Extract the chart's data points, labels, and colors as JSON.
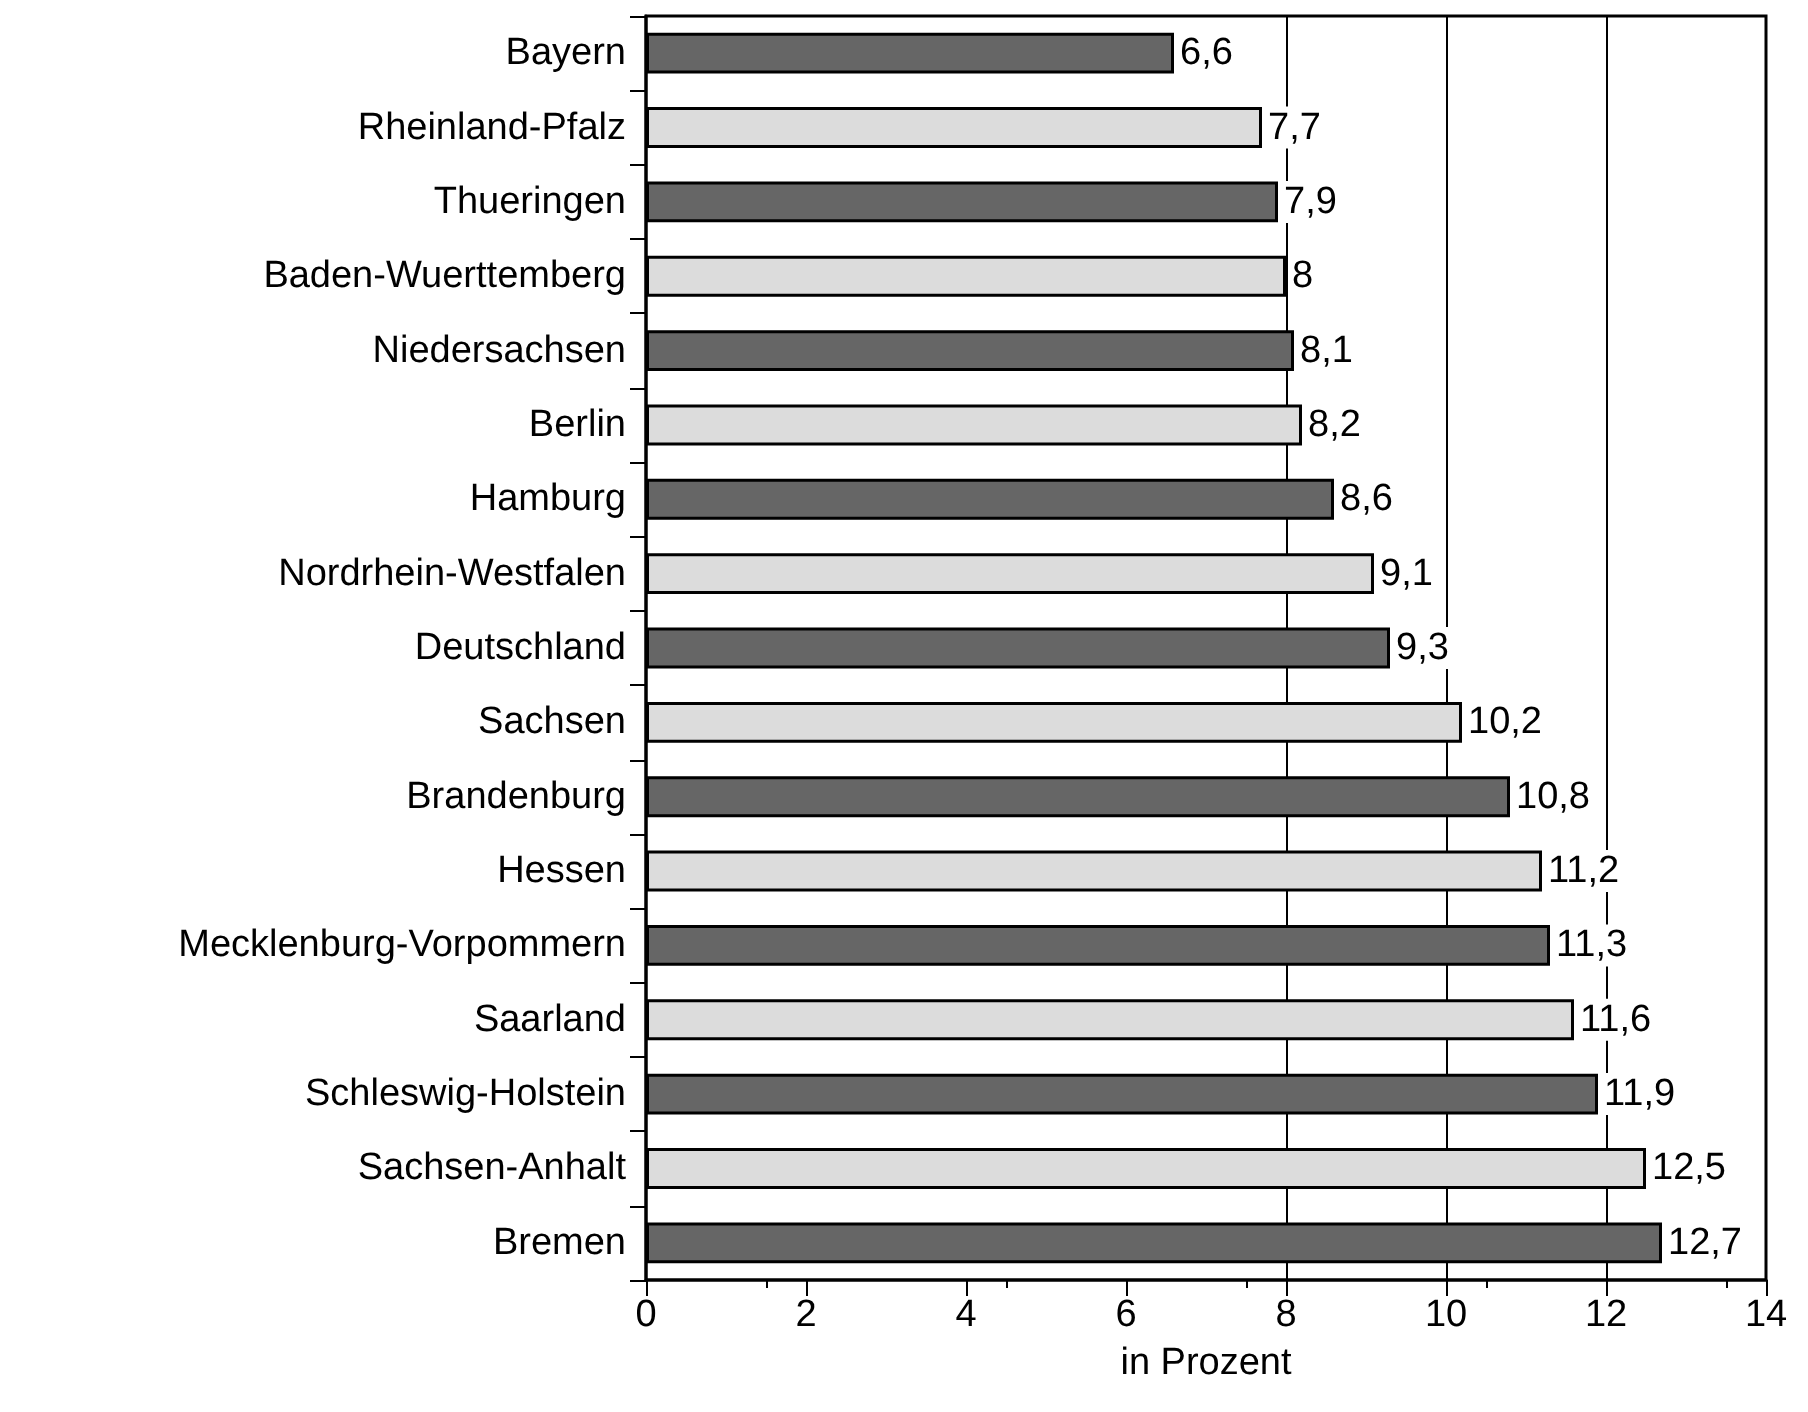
{
  "chart_data": {
    "type": "bar",
    "orientation": "horizontal",
    "xlabel": "in Prozent",
    "categories": [
      "Bayern",
      "Rheinland-Pfalz",
      "Thueringen",
      "Baden-Wuerttemberg",
      "Niedersachsen",
      "Berlin",
      "Hamburg",
      "Nordrhein-Westfalen",
      "Deutschland",
      "Sachsen",
      "Brandenburg",
      "Hessen",
      "Mecklenburg-Vorpommern",
      "Saarland",
      "Schleswig-Holstein",
      "Sachsen-Anhalt",
      "Bremen"
    ],
    "values": [
      6.6,
      7.7,
      7.9,
      8,
      8.1,
      8.2,
      8.6,
      9.1,
      9.3,
      10.2,
      10.8,
      11.2,
      11.3,
      11.6,
      11.9,
      12.5,
      12.7
    ],
    "value_labels": [
      "6,6",
      "7,7",
      "7,9",
      "8",
      "8,1",
      "8,2",
      "8,6",
      "9,1",
      "9,3",
      "10,2",
      "10,8",
      "11,2",
      "11,3",
      "11,6",
      "11,9",
      "12,5",
      "12,7"
    ],
    "colors": [
      "#666666",
      "#dcdcdc",
      "#666666",
      "#dcdcdc",
      "#666666",
      "#dcdcdc",
      "#666666",
      "#dcdcdc",
      "#666666",
      "#dcdcdc",
      "#666666",
      "#dcdcdc",
      "#666666",
      "#dcdcdc",
      "#666666",
      "#dcdcdc",
      "#666666"
    ],
    "xlim": [
      0,
      14
    ],
    "xticks": [
      0,
      2,
      4,
      6,
      8,
      10,
      12,
      14
    ],
    "grid": false,
    "ref_lines": [
      {
        "axis": "x",
        "value": 8,
        "color": "#000000"
      },
      {
        "axis": "x",
        "value": 10,
        "color": "#000000"
      },
      {
        "axis": "x",
        "value": 12,
        "color": "#000000"
      }
    ]
  }
}
